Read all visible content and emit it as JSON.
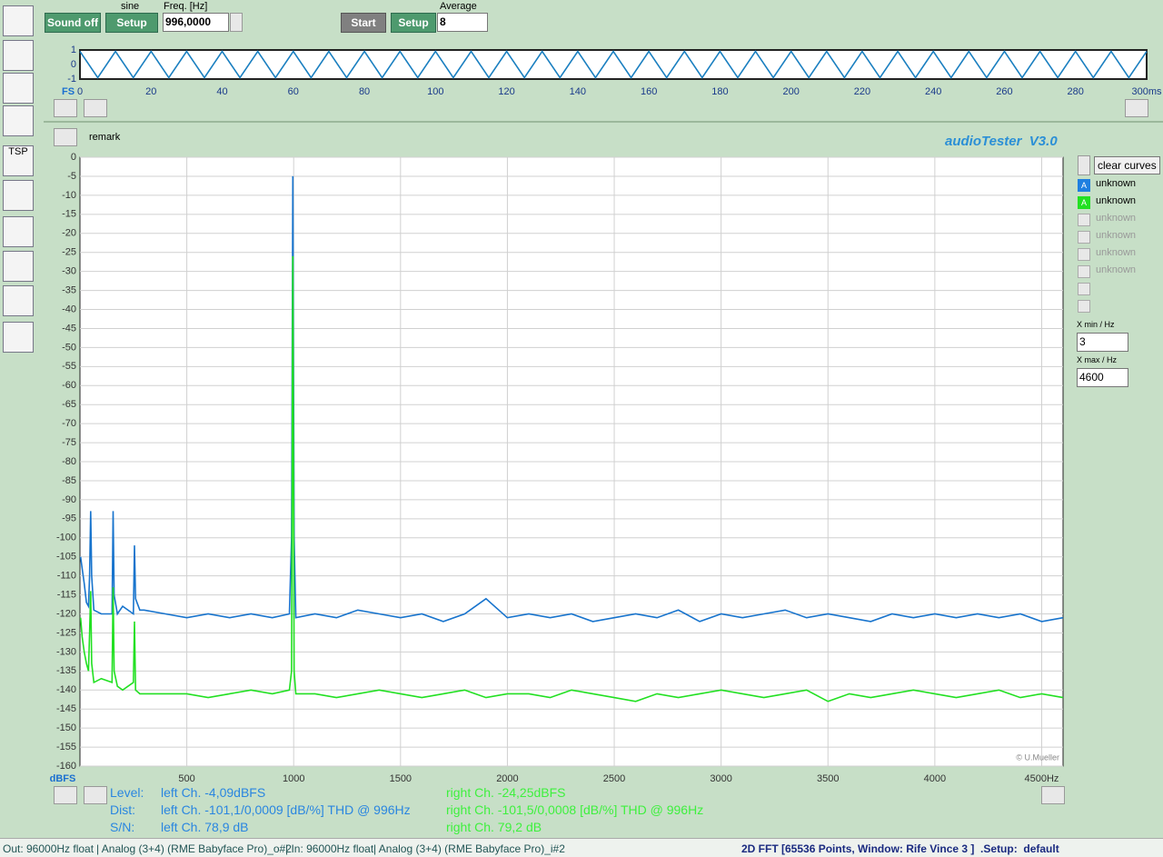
{
  "ui": {
    "sound_button": "Sound off",
    "sine_label": "sine",
    "setup_button_1": "Setup",
    "freq_label": "Freq. [Hz]",
    "freq_value": "996,0000",
    "start_button": "Start",
    "setup_button_2": "Setup",
    "average_label": "Average",
    "average_value": "8",
    "toolbar_tsp": "TSP",
    "remark": "remark",
    "app_title": "audioTester  V3.0",
    "clear_button": "clear curves",
    "channel_letter_a": "A",
    "channel_letter_b": "A",
    "inactive_channels": [
      "unknown",
      "unknown",
      "unknown",
      "unknown"
    ],
    "xmin_label": "X min / Hz",
    "xmin_value": "3",
    "xmax_label": "X max / Hz",
    "xmax_value": "4600",
    "copyright": "© U.Mueller",
    "stats": [
      {
        "label": "Level:",
        "left": "left Ch. -4,09dBFS",
        "right": "right Ch. -24,25dBFS"
      },
      {
        "label": "Dist:",
        "left": "left Ch. -101,1/0,0009 [dB/%] THD @ 996Hz",
        "right": "right Ch. -101,5/0,0008 [dB/%] THD @ 996Hz"
      },
      {
        "label": "S/N:",
        "left": "left Ch. 78,9 dB",
        "right": "right Ch. 79,2 dB"
      }
    ],
    "status_left": [
      "Out: 96000Hz float",
      "| Analog (3+4) (RME Babyface Pro)_o#2",
      "| In: 96000Hz float",
      "| Analog (3+4) (RME Babyface Pro)_i#2"
    ],
    "status_right": "2D FFT [65536 Points, Window: Rife Vince 3 ]  .Setup:  default"
  },
  "chart_data": [
    {
      "type": "line",
      "y_label": "FS",
      "color": "#1a7fc0",
      "x": [
        0,
        5,
        10,
        15,
        20,
        25,
        30,
        35,
        40,
        45,
        50,
        55,
        60,
        65,
        70,
        75,
        80,
        85,
        90,
        95,
        100,
        105,
        110,
        115,
        120,
        125,
        130,
        135,
        140,
        145,
        150,
        155,
        160,
        165,
        170,
        175,
        180,
        185,
        190,
        195,
        200,
        205,
        210,
        215,
        220,
        225,
        230,
        235,
        240,
        245,
        250,
        255,
        260,
        265,
        270,
        275,
        280,
        285,
        290,
        295,
        300
      ],
      "values": [
        0.9,
        -0.9,
        0.9,
        -0.9,
        0.9,
        -0.9,
        0.9,
        -0.9,
        0.9,
        -0.9,
        0.9,
        -0.9,
        0.9,
        -0.9,
        0.9,
        -0.9,
        0.9,
        -0.9,
        0.9,
        -0.9,
        0.9,
        -0.9,
        0.9,
        -0.9,
        0.9,
        -0.9,
        0.9,
        -0.9,
        0.9,
        -0.9,
        0.9,
        -0.9,
        0.9,
        -0.9,
        0.9,
        -0.9,
        0.9,
        -0.9,
        0.9,
        -0.9,
        0.9,
        -0.9,
        0.9,
        -0.9,
        0.9,
        -0.9,
        0.9,
        -0.9,
        0.9,
        -0.9,
        0.9,
        -0.9,
        0.9,
        -0.9,
        0.9,
        -0.9,
        0.9,
        -0.9,
        0.9,
        -0.9,
        0.9
      ],
      "xlim": [
        0,
        300
      ],
      "xticks": [
        0,
        20,
        40,
        60,
        80,
        100,
        120,
        140,
        160,
        180,
        200,
        220,
        240,
        260,
        280,
        {
          "value": 300,
          "label": "300ms"
        }
      ],
      "ylim": [
        -1,
        1
      ],
      "yticks": [
        1,
        0,
        -1
      ],
      "grid": false
    },
    {
      "type": "line",
      "y_label": "dBFS",
      "x": [
        3,
        10,
        20,
        30,
        40,
        45,
        50,
        55,
        65,
        100,
        150,
        155,
        160,
        175,
        200,
        250,
        255,
        260,
        280,
        300,
        400,
        500,
        600,
        700,
        800,
        900,
        980,
        990,
        996,
        1002,
        1010,
        1100,
        1200,
        1300,
        1400,
        1500,
        1600,
        1700,
        1800,
        1900,
        2000,
        2100,
        2200,
        2300,
        2400,
        2500,
        2600,
        2700,
        2800,
        2900,
        3000,
        3100,
        3200,
        3300,
        3400,
        3500,
        3600,
        3700,
        3800,
        3900,
        4000,
        4100,
        4200,
        4300,
        4400,
        4500,
        4600
      ],
      "series": [
        {
          "name": "unknown",
          "color": "#1874cd",
          "values": [
            -105,
            -108,
            -112,
            -117,
            -118,
            -110,
            -93,
            -110,
            -119,
            -120,
            -120,
            -93,
            -115,
            -120,
            -118,
            -120,
            -102,
            -116,
            -119,
            -119,
            -120,
            -121,
            -120,
            -121,
            -120,
            -121,
            -120,
            -100,
            -5,
            -100,
            -121,
            -120,
            -121,
            -119,
            -120,
            -121,
            -120,
            -122,
            -120,
            -116,
            -121,
            -120,
            -121,
            -120,
            -122,
            -121,
            -120,
            -121,
            -119,
            -122,
            -120,
            -121,
            -120,
            -119,
            -121,
            -120,
            -121,
            -122,
            -120,
            -121,
            -120,
            -121,
            -120,
            -121,
            -120,
            -122,
            -121
          ]
        },
        {
          "name": "unknown",
          "color": "#22e022",
          "values": [
            -121,
            -126,
            -130,
            -133,
            -135,
            -125,
            -114,
            -133,
            -138,
            -137,
            -138,
            -113,
            -135,
            -139,
            -140,
            -138,
            -122,
            -140,
            -141,
            -141,
            -141,
            -141,
            -142,
            -141,
            -140,
            -141,
            -140,
            -135,
            -26,
            -135,
            -141,
            -141,
            -142,
            -141,
            -140,
            -141,
            -142,
            -141,
            -140,
            -142,
            -141,
            -141,
            -142,
            -140,
            -141,
            -142,
            -143,
            -141,
            -142,
            -141,
            -140,
            -141,
            -142,
            -141,
            -140,
            -143,
            -141,
            -142,
            -141,
            -140,
            -141,
            -142,
            -141,
            -140,
            -142,
            -141,
            -142
          ]
        }
      ],
      "xlim": [
        0,
        4600
      ],
      "xticks": [
        500,
        1000,
        1500,
        2000,
        2500,
        3000,
        3500,
        4000,
        {
          "value": 4500,
          "label": "4500Hz"
        }
      ],
      "ylim": [
        -160,
        0
      ],
      "yticks": [
        0,
        -5,
        -10,
        -15,
        -20,
        -25,
        -30,
        -35,
        -40,
        -45,
        -50,
        -55,
        -60,
        -65,
        -70,
        -75,
        -80,
        -85,
        -90,
        -95,
        -100,
        -105,
        -110,
        -115,
        -120,
        -125,
        -130,
        -135,
        -140,
        -145,
        -150,
        -155,
        -160
      ],
      "grid": true
    }
  ]
}
